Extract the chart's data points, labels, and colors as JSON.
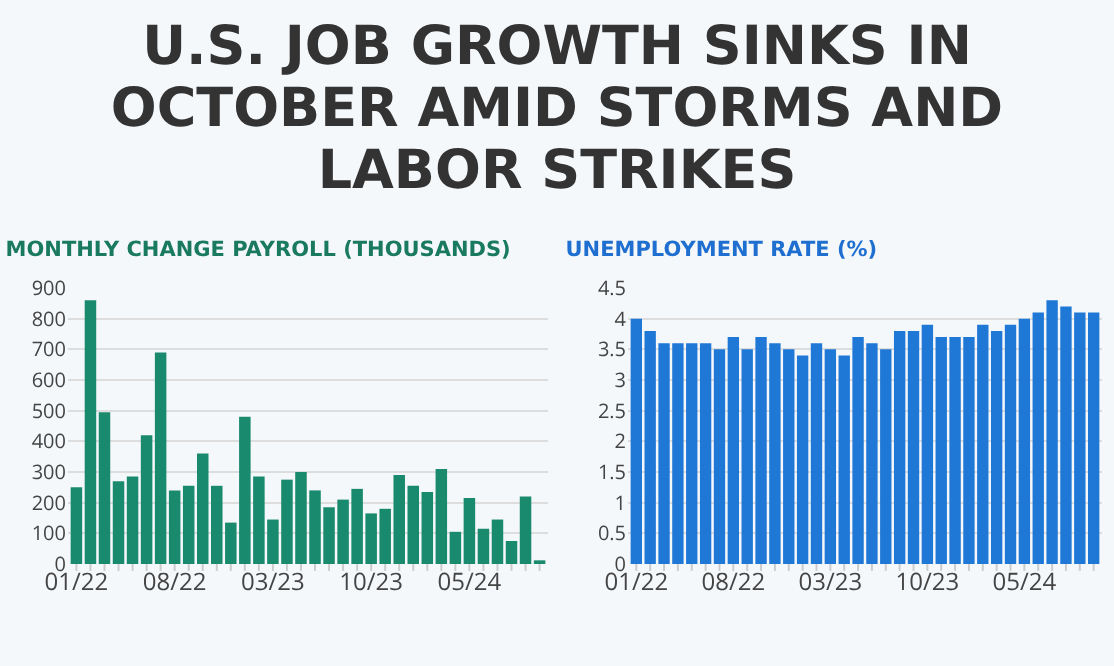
{
  "chart_data": [
    {
      "type": "other",
      "title": "U.S. JOB GROWTH SINKS IN OCTOBER AMID STORMS AND LABOR STRIKES"
    },
    {
      "type": "bar",
      "title": "MONTHLY CHANGE PAYROLL (THOUSANDS)",
      "categories": [
        "01/22",
        null,
        null,
        null,
        null,
        null,
        null,
        "08/22",
        null,
        null,
        null,
        null,
        null,
        null,
        "03/23",
        null,
        null,
        null,
        null,
        null,
        null,
        "10/23",
        null,
        null,
        null,
        null,
        null,
        null,
        "05/24",
        null,
        null,
        null,
        null,
        null
      ],
      "series": [
        {
          "color": "#1a8a6e",
          "values": [
            250,
            860,
            495,
            270,
            285,
            420,
            690,
            240,
            255,
            360,
            255,
            135,
            480,
            285,
            145,
            275,
            300,
            240,
            185,
            210,
            245,
            165,
            180,
            290,
            255,
            235,
            310,
            105,
            215,
            115,
            145,
            75,
            220,
            12
          ]
        }
      ],
      "ylim": [
        0,
        900
      ],
      "yticks": [
        0,
        100,
        200,
        300,
        400,
        500,
        600,
        700,
        800,
        900
      ],
      "grid": "y"
    },
    {
      "type": "bar",
      "title": "UNEMPLOYMENT RATE (%)",
      "categories": [
        "01/22",
        null,
        null,
        null,
        null,
        null,
        null,
        "08/22",
        null,
        null,
        null,
        null,
        null,
        null,
        "03/23",
        null,
        null,
        null,
        null,
        null,
        null,
        "10/23",
        null,
        null,
        null,
        null,
        null,
        null,
        "05/24",
        null,
        null,
        null,
        null,
        null
      ],
      "series": [
        {
          "color": "#1f77d6",
          "values": [
            4.0,
            3.8,
            3.6,
            3.6,
            3.6,
            3.6,
            3.5,
            3.7,
            3.5,
            3.7,
            3.6,
            3.5,
            3.4,
            3.6,
            3.5,
            3.4,
            3.7,
            3.6,
            3.5,
            3.8,
            3.8,
            3.9,
            3.7,
            3.7,
            3.7,
            3.9,
            3.8,
            3.9,
            4.0,
            4.1,
            4.3,
            4.2,
            4.1,
            4.1
          ]
        }
      ],
      "ylim": [
        0,
        4.5
      ],
      "yticks": [
        0,
        0.5,
        1,
        1.5,
        2,
        2.5,
        3,
        3.5,
        4,
        4.5
      ],
      "grid": "y"
    }
  ]
}
